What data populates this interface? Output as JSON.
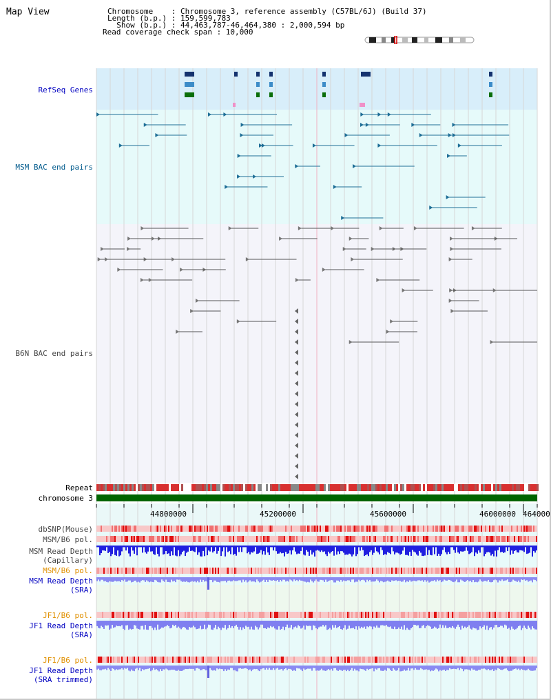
{
  "title": "Map View",
  "header": {
    "lines": [
      "Chromosome    : Chromosome 3, reference assembly (C57BL/6J) (Build 37)",
      "Length (b.p.) : 159,599,783",
      "  Show (b.p.) : 44,463,787-46,464,380 : 2,000,594 bp",
      "Read coverage check span : 10,000"
    ]
  },
  "tracks": {
    "refseq": "RefSeq Genes",
    "msm_bac": "MSM BAC end pairs",
    "b6n_bac": "B6N BAC end pairs",
    "repeat": "Repeat",
    "chromosome": "chromosome 3",
    "dbsnp": "dbSNP(Mouse)",
    "msm_b6_pol_1": "MSM/B6 pol.",
    "msm_read_depth_cap": [
      "MSM Read Depth",
      "(Capillary)"
    ],
    "msm_b6_pol_2": "MSM/B6 pol.",
    "msm_read_depth_sra": [
      "MSM Read Depth",
      "(SRA)"
    ],
    "jf1_b6_pol_1": "JF1/B6 pol.",
    "jf1_read_depth_sra": [
      "JF1 Read Depth",
      "(SRA)"
    ],
    "jf1_b6_pol_2": "JF1/B6 pol.",
    "jf1_read_depth_trim": [
      "JF1 Read Depth",
      "(SRA trimmed)"
    ]
  },
  "axis": {
    "ticks": [
      "44800000",
      "45200000",
      "45600000",
      "46000000",
      "464000"
    ]
  },
  "colors": {
    "refseq_bg": "#d8eefa",
    "msm_bg": "#e6fafa",
    "b6n_bg": "#f4f4fa",
    "label_blue": "#0000c0",
    "label_msm": "#005a8c",
    "label_orange": "#e09000",
    "label_gray": "#444444",
    "chromosome_green": "#006400",
    "depth_blue": "#2020e0",
    "depth_light": "#7f7ff0",
    "pol_red": "#e03030"
  }
}
